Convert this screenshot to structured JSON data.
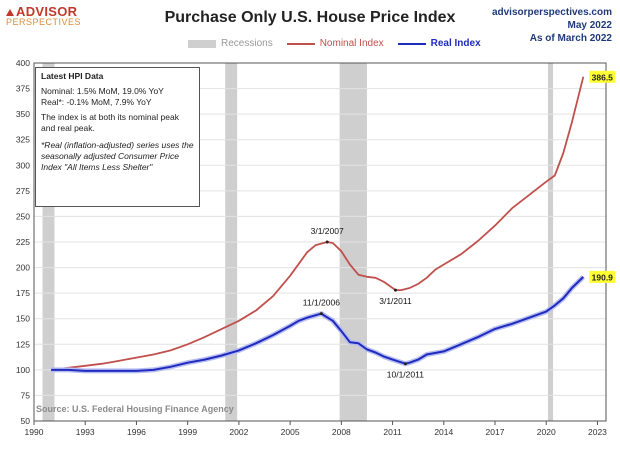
{
  "header": {
    "logo_main": "ADVISOR",
    "logo_sub": "PERSPECTIVES",
    "title": "Purchase Only U.S. House Price Index",
    "site": "advisorperspectives.com",
    "date": "May 2022",
    "asof": "As of March 2022"
  },
  "legend": {
    "recessions": "Recessions",
    "nominal": "Nominal Index",
    "real": "Real Index"
  },
  "infobox": {
    "title": "Latest HPI Data",
    "nominal": "Nominal:  1.5% MoM, 19.0% YoY",
    "real": "Real*:  -0.1% MoM, 7.9% YoY",
    "peak1": "The index is at both its nominal peak",
    "peak2": "and real peak.",
    "note1": "*Real (inflation-adjusted) series uses the",
    "note2": "seasonally adjusted Consumer Price",
    "note3": "Index \"All Items Less Shelter\""
  },
  "footer": {
    "source": "Source: U.S. Federal Housing Finance Agency"
  },
  "colors": {
    "nominal": "#c0504d",
    "real": "#1f2bbf",
    "recession": "#cfcfcf",
    "end_label_bg": "#ffff33"
  },
  "chart_data": {
    "type": "line",
    "xlim": [
      1990,
      2023.5
    ],
    "ylim": [
      50,
      400
    ],
    "x_ticks": [
      1990,
      1993,
      1996,
      1999,
      2002,
      2005,
      2008,
      2011,
      2014,
      2017,
      2020,
      2023
    ],
    "y_ticks": [
      50,
      75,
      100,
      125,
      150,
      175,
      200,
      225,
      250,
      275,
      300,
      325,
      350,
      375,
      400
    ],
    "grid": true,
    "recessions": [
      [
        1990.5,
        1991.2
      ],
      [
        2001.2,
        2001.9
      ],
      [
        2007.9,
        2009.5
      ],
      [
        2020.1,
        2020.4
      ]
    ],
    "series": [
      {
        "name": "Nominal Index",
        "x": [
          1991,
          1992,
          1993,
          1994,
          1995,
          1996,
          1997,
          1998,
          1999,
          2000,
          2001,
          2002,
          2003,
          2004,
          2005,
          2006,
          2006.5,
          2007.17,
          2007.5,
          2008,
          2008.5,
          2009,
          2009.5,
          2010,
          2010.5,
          2011.17,
          2011.5,
          2012,
          2012.5,
          2013,
          2013.5,
          2014,
          2015,
          2016,
          2017,
          2018,
          2019,
          2020,
          2020.5,
          2021,
          2021.5,
          2022.17
        ],
        "values": [
          100,
          102,
          104,
          106,
          109,
          112,
          115,
          119,
          125,
          132,
          140,
          148,
          158,
          172,
          192,
          215,
          222,
          225,
          224,
          216,
          203,
          193,
          191,
          190,
          186,
          178,
          178,
          180,
          184,
          190,
          198,
          203,
          213,
          226,
          241,
          258,
          271,
          284,
          290,
          312,
          342,
          386.5
        ]
      },
      {
        "name": "Real Index",
        "x": [
          1991,
          1992,
          1993,
          1994,
          1995,
          1996,
          1997,
          1998,
          1999,
          2000,
          2001,
          2002,
          2003,
          2004,
          2005,
          2005.5,
          2006,
          2006.83,
          2007,
          2007.5,
          2008,
          2008.5,
          2009,
          2009.5,
          2010,
          2010.5,
          2011,
          2011.75,
          2012,
          2012.5,
          2013,
          2014,
          2015,
          2016,
          2017,
          2018,
          2019,
          2020,
          2020.5,
          2021,
          2021.5,
          2022.17
        ],
        "values": [
          100,
          100,
          99,
          99,
          99,
          99,
          100,
          103,
          107,
          110,
          114,
          119,
          126,
          134,
          143,
          148,
          151,
          155,
          153,
          148,
          138,
          127,
          126,
          120,
          117,
          113,
          110,
          106,
          107,
          110,
          115,
          118,
          125,
          132,
          140,
          145,
          151,
          157,
          163,
          170,
          180,
          190.9
        ]
      }
    ],
    "end_labels": [
      "386.5",
      "190.9"
    ],
    "annotations": [
      {
        "text": "3/1/2007",
        "x": 2007.17,
        "y": 225,
        "pos": "above"
      },
      {
        "text": "11/1/2006",
        "x": 2006.83,
        "y": 155,
        "pos": "above"
      },
      {
        "text": "3/1/2011",
        "x": 2011.17,
        "y": 178,
        "pos": "below"
      },
      {
        "text": "10/1/2011",
        "x": 2011.75,
        "y": 106,
        "pos": "below"
      }
    ]
  }
}
